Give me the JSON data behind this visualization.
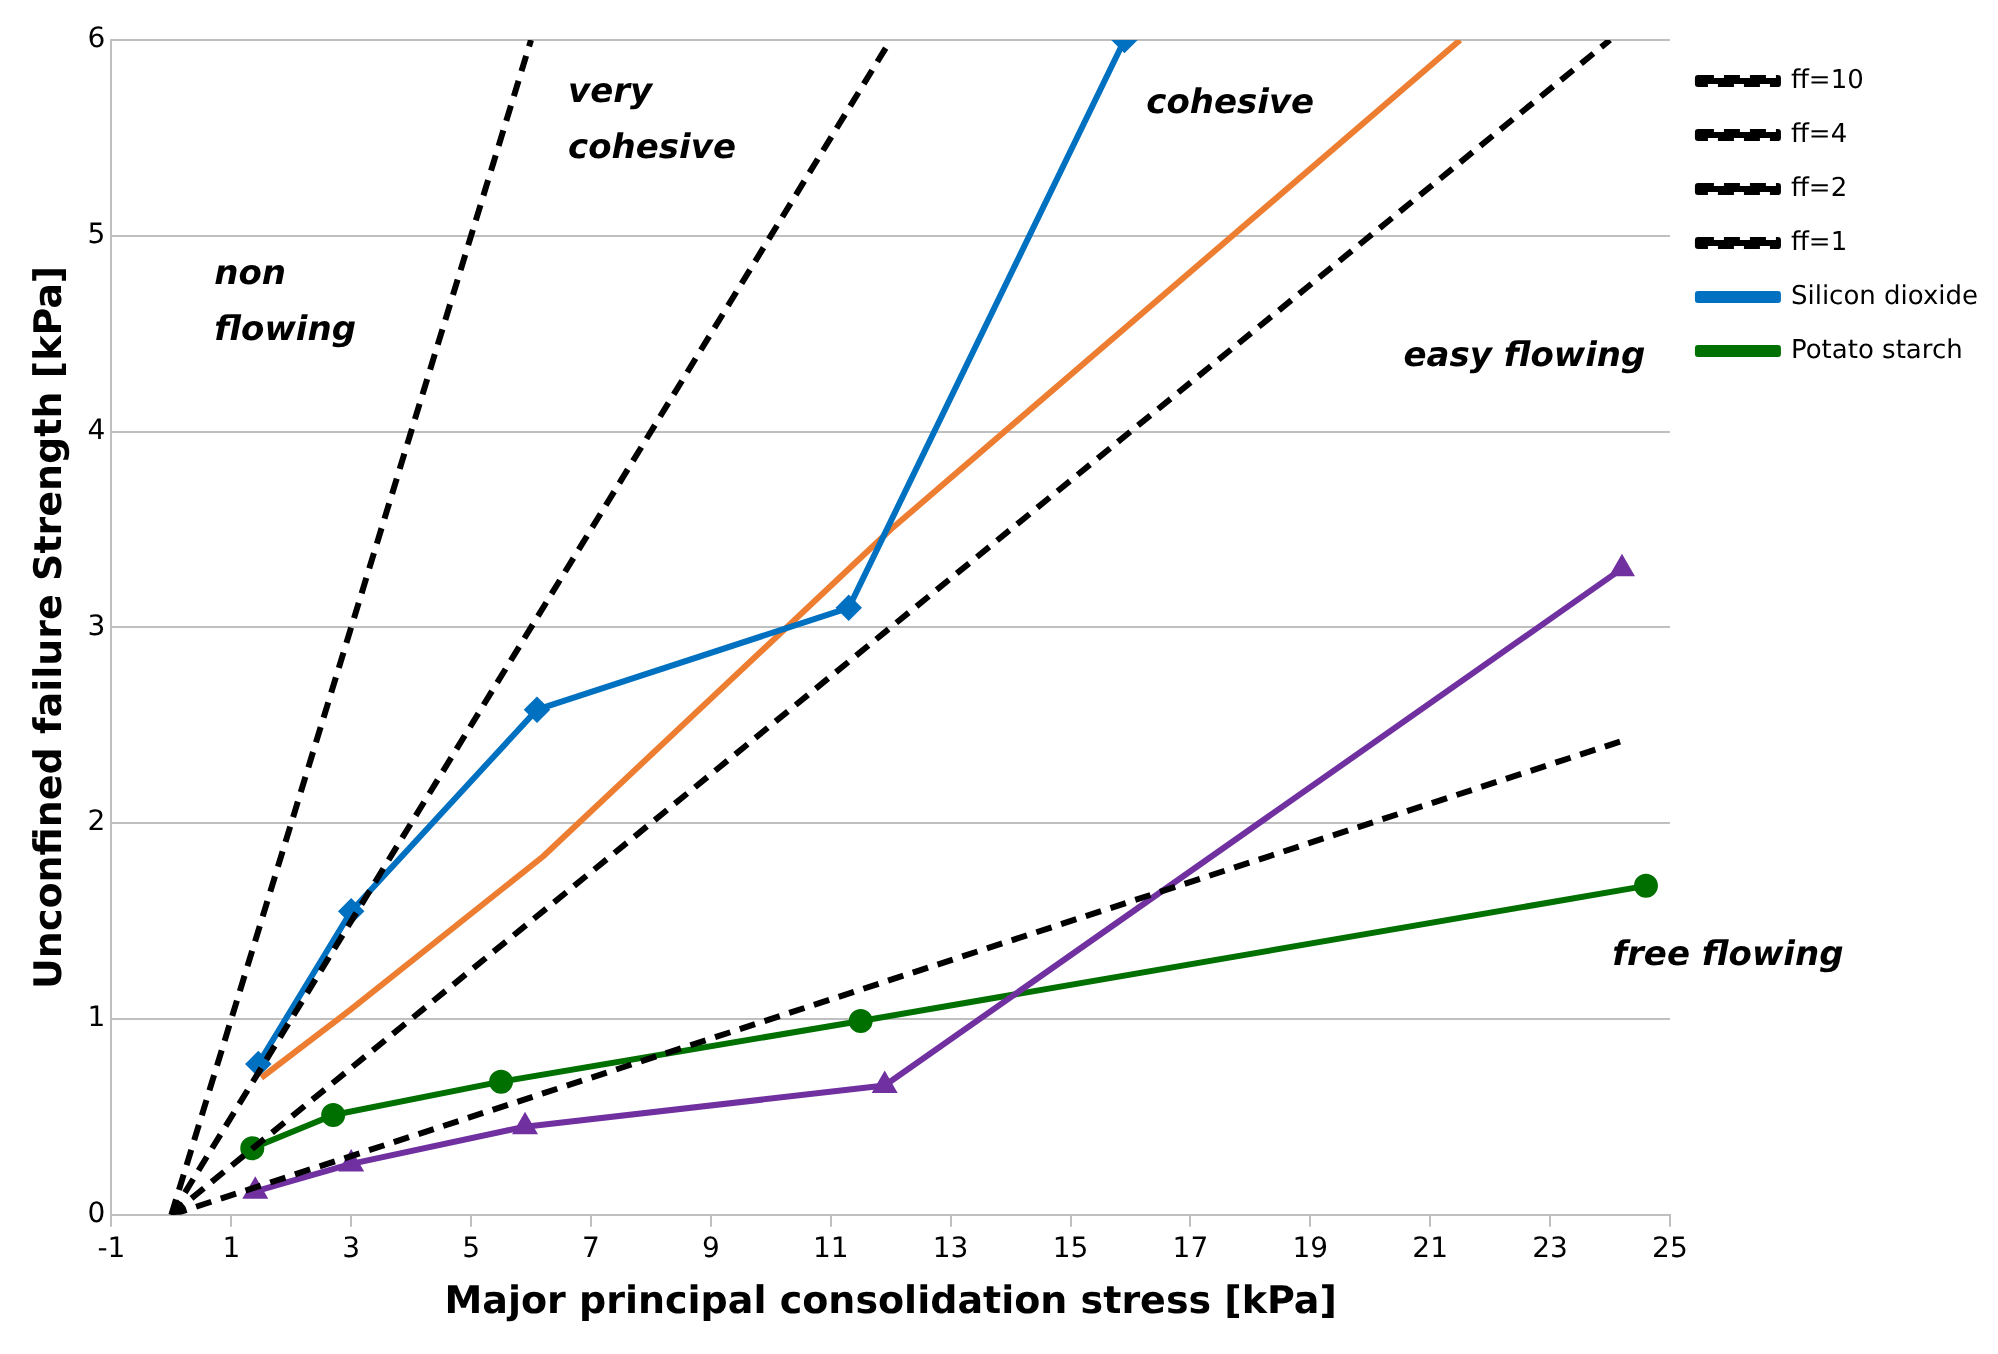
{
  "chart_data": {
    "type": "line",
    "xlabel": "Major principal consolidation stress [kPa]",
    "ylabel": "Unconfined failure Strength [kPa]",
    "xlim": [
      -1,
      25
    ],
    "xticks": [
      -1,
      1,
      3,
      5,
      7,
      9,
      11,
      13,
      15,
      17,
      19,
      21,
      23,
      25
    ],
    "ylim": [
      0,
      6
    ],
    "yticks": [
      0,
      1,
      2,
      3,
      4,
      5,
      6
    ],
    "grid": "y",
    "legend": "top right",
    "series": [
      {
        "name": "ff=10",
        "color": "#000000",
        "line_style": "dashed",
        "marker": "none",
        "x": [
          0,
          24.2
        ],
        "values": [
          0,
          2.42
        ]
      },
      {
        "name": "ff=4",
        "color": "#000000",
        "line_style": "dashed",
        "marker": "none",
        "x": [
          0,
          24
        ],
        "values": [
          0,
          6
        ]
      },
      {
        "name": "ff=2",
        "color": "#000000",
        "line_style": "dashed",
        "marker": "none",
        "x": [
          0,
          12
        ],
        "values": [
          0,
          6
        ]
      },
      {
        "name": "ff=1",
        "color": "#000000",
        "line_style": "dashed",
        "marker": "none",
        "x": [
          0,
          6
        ],
        "values": [
          0,
          6
        ]
      },
      {
        "name": "Silicon dioxide",
        "color": "#0070c0",
        "marker": "diamond",
        "x": [
          1.45,
          3,
          6.1,
          11.3,
          15.9
        ],
        "values": [
          0.77,
          1.55,
          2.58,
          3.1,
          6
        ]
      },
      {
        "color": "#7030a0",
        "marker": "triangle",
        "x": [
          1.4,
          3,
          5.9,
          11.9,
          24.2
        ],
        "values": [
          0.12,
          0.26,
          0.45,
          0.66,
          3.3
        ]
      },
      {
        "name": "Potato starch",
        "color": "#007000",
        "marker": "circle",
        "x": [
          1.35,
          2.7,
          5.5,
          11.5,
          24.6
        ],
        "values": [
          0.34,
          0.51,
          0.68,
          0.99,
          1.68
        ]
      },
      {
        "color": "#ed7d31",
        "marker": "none",
        "x": [
          1.5,
          3,
          6.2,
          12,
          21.5
        ],
        "values": [
          0.7,
          1.05,
          1.83,
          3.5,
          6
        ]
      }
    ],
    "annotations": [
      "non flowing",
      "very cohesive",
      "cohesive",
      "easy flowing",
      "free flowing"
    ]
  }
}
